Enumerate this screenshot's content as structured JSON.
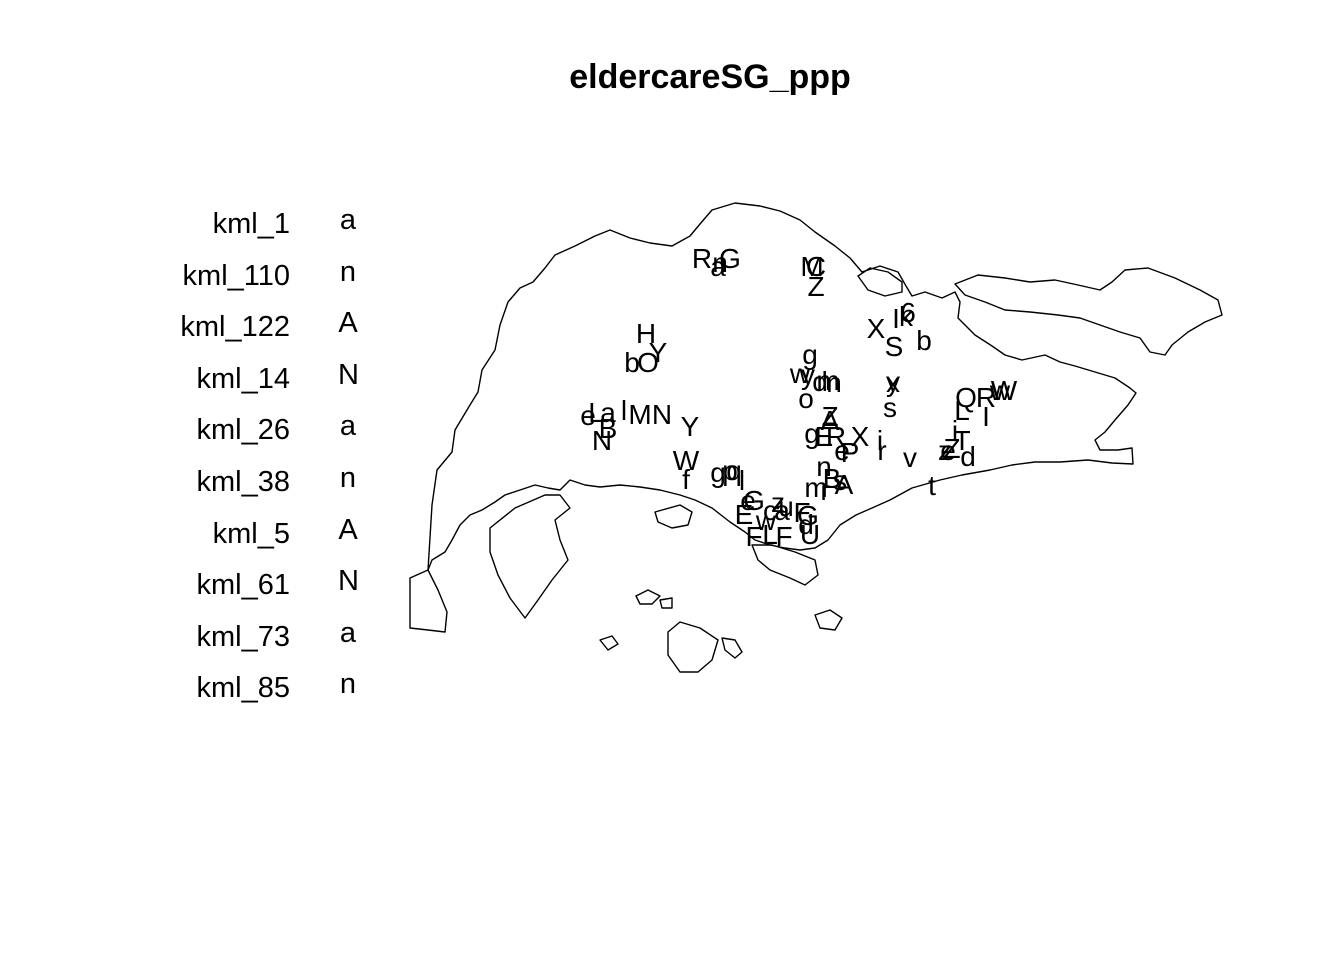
{
  "title": "eldercareSG_ppp",
  "legend": [
    {
      "label": "kml_1",
      "symbol": "a"
    },
    {
      "label": "kml_110",
      "symbol": "n"
    },
    {
      "label": "kml_122",
      "symbol": "A"
    },
    {
      "label": "kml_14",
      "symbol": "N"
    },
    {
      "label": "kml_26",
      "symbol": "a"
    },
    {
      "label": "kml_38",
      "symbol": "n"
    },
    {
      "label": "kml_5",
      "symbol": "A"
    },
    {
      "label": "kml_61",
      "symbol": "N"
    },
    {
      "label": "kml_73",
      "symbol": "a"
    },
    {
      "label": "kml_85",
      "symbol": "n"
    }
  ],
  "colors": {
    "background": "#ffffff",
    "ink": "#000000"
  }
}
